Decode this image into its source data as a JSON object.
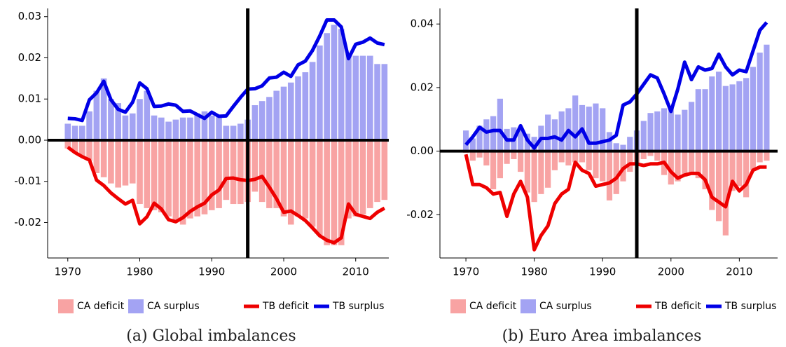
{
  "chart_data": [
    {
      "type": "combo",
      "caption": "(a) Global imbalances",
      "x": [
        1970,
        1971,
        1972,
        1973,
        1974,
        1975,
        1976,
        1977,
        1978,
        1979,
        1980,
        1981,
        1982,
        1983,
        1984,
        1985,
        1986,
        1987,
        1988,
        1989,
        1990,
        1991,
        1992,
        1993,
        1994,
        1995,
        1996,
        1997,
        1998,
        1999,
        2000,
        2001,
        2002,
        2003,
        2004,
        2005,
        2006,
        2007,
        2008,
        2009,
        2010,
        2011,
        2012,
        2013,
        2014
      ],
      "xlim": [
        1967.2,
        2014.6
      ],
      "xticks": [
        1970,
        1980,
        1990,
        2000,
        2010
      ],
      "ylim": [
        -0.0286,
        0.032
      ],
      "yticks": [
        -0.02,
        -0.01,
        {
          "value": 0,
          "label": "0.00"
        },
        0.01,
        0.02,
        0.03
      ],
      "vline": 1995,
      "series": [
        {
          "name": "CA deficit",
          "type": "bar",
          "color": "#f8a3a3",
          "values": [
            -0.002,
            -0.003,
            -0.004,
            -0.005,
            -0.008,
            -0.009,
            -0.0105,
            -0.0115,
            -0.011,
            -0.0105,
            -0.0155,
            -0.0165,
            -0.017,
            -0.0175,
            -0.0185,
            -0.0195,
            -0.0205,
            -0.019,
            -0.0185,
            -0.018,
            -0.017,
            -0.0165,
            -0.0145,
            -0.0155,
            -0.0155,
            -0.015,
            -0.0125,
            -0.015,
            -0.0165,
            -0.0165,
            -0.0185,
            -0.0205,
            -0.0185,
            -0.019,
            -0.021,
            -0.023,
            -0.0255,
            -0.0255,
            -0.0255,
            -0.019,
            -0.0185,
            -0.018,
            -0.0165,
            -0.015,
            -0.0145
          ]
        },
        {
          "name": "CA surplus",
          "type": "bar",
          "color": "#a3a3f3",
          "values": [
            0.004,
            0.0035,
            0.0035,
            0.007,
            0.012,
            0.015,
            0.01,
            0.009,
            0.006,
            0.0065,
            0.01,
            0.012,
            0.006,
            0.0055,
            0.0045,
            0.005,
            0.0055,
            0.0055,
            0.0065,
            0.007,
            0.006,
            0.006,
            0.0035,
            0.0035,
            0.004,
            0.005,
            0.0085,
            0.0095,
            0.0105,
            0.012,
            0.013,
            0.014,
            0.0155,
            0.0165,
            0.019,
            0.023,
            0.026,
            0.028,
            0.027,
            0.021,
            0.0205,
            0.0205,
            0.0205,
            0.0185,
            0.0185
          ]
        },
        {
          "name": "TB deficit",
          "type": "line",
          "color": "#ee0000",
          "values": [
            -0.0017,
            -0.003,
            -0.004,
            -0.0048,
            -0.0097,
            -0.011,
            -0.0128,
            -0.0142,
            -0.0155,
            -0.0146,
            -0.0203,
            -0.0186,
            -0.0153,
            -0.0167,
            -0.0193,
            -0.0198,
            -0.0188,
            -0.0173,
            -0.0162,
            -0.0153,
            -0.0133,
            -0.0121,
            -0.0093,
            -0.0092,
            -0.0096,
            -0.0098,
            -0.0095,
            -0.0088,
            -0.0114,
            -0.0142,
            -0.0175,
            -0.0172,
            -0.0183,
            -0.0195,
            -0.0213,
            -0.0232,
            -0.0243,
            -0.0249,
            -0.0237,
            -0.0155,
            -0.018,
            -0.0185,
            -0.019,
            -0.0175,
            -0.0165
          ]
        },
        {
          "name": "TB surplus",
          "type": "line",
          "color": "#0000e6",
          "values": [
            0.0053,
            0.0052,
            0.0048,
            0.0098,
            0.0115,
            0.0143,
            0.0098,
            0.0075,
            0.0068,
            0.0092,
            0.0139,
            0.0125,
            0.0082,
            0.0083,
            0.0088,
            0.0085,
            0.007,
            0.0071,
            0.0062,
            0.0053,
            0.0068,
            0.0058,
            0.0059,
            0.0082,
            0.0104,
            0.0124,
            0.0125,
            0.0132,
            0.0151,
            0.0153,
            0.0165,
            0.0155,
            0.0183,
            0.0192,
            0.0218,
            0.0253,
            0.0292,
            0.0292,
            0.0275,
            0.0198,
            0.0233,
            0.0238,
            0.0248,
            0.0236,
            0.0232
          ]
        }
      ]
    },
    {
      "type": "combo",
      "caption": "(b) Euro Area imbalances",
      "x": [
        1970,
        1971,
        1972,
        1973,
        1974,
        1975,
        1976,
        1977,
        1978,
        1979,
        1980,
        1981,
        1982,
        1983,
        1984,
        1985,
        1986,
        1987,
        1988,
        1989,
        1990,
        1991,
        1992,
        1993,
        1994,
        1995,
        1996,
        1997,
        1998,
        1999,
        2000,
        2001,
        2002,
        2003,
        2004,
        2005,
        2006,
        2007,
        2008,
        2009,
        2010,
        2011,
        2012,
        2013,
        2014
      ],
      "xlim": [
        1966.2,
        2015.6
      ],
      "xticks": [
        1970,
        1980,
        1990,
        2000,
        2010
      ],
      "ylim": [
        -0.0336,
        0.0449
      ],
      "yticks": [
        -0.02,
        {
          "value": 0,
          "label": "0.00"
        },
        0.02,
        0.04
      ],
      "vline": 1995,
      "series": [
        {
          "name": "CA deficit",
          "type": "bar",
          "color": "#f8a3a3",
          "values": [
            -0.0005,
            -0.003,
            -0.002,
            -0.0045,
            -0.012,
            -0.0085,
            -0.004,
            -0.0025,
            -0.0065,
            -0.013,
            -0.016,
            -0.0135,
            -0.0115,
            -0.006,
            -0.0035,
            -0.0045,
            -0.0035,
            -0.0035,
            -0.006,
            -0.0085,
            -0.0095,
            -0.0155,
            -0.0135,
            -0.0095,
            -0.0065,
            -0.004,
            -0.0025,
            -0.0015,
            -0.003,
            -0.0075,
            -0.0105,
            -0.0095,
            -0.008,
            -0.0075,
            -0.0085,
            -0.012,
            -0.0185,
            -0.022,
            -0.0265,
            -0.0125,
            -0.011,
            -0.0145,
            -0.006,
            -0.0035,
            -0.003
          ]
        },
        {
          "name": "CA surplus",
          "type": "bar",
          "color": "#a3a3f3",
          "values": [
            0.0065,
            0.004,
            0.008,
            0.01,
            0.011,
            0.0165,
            0.007,
            0.0075,
            0.0075,
            0.0055,
            0.0045,
            0.008,
            0.0115,
            0.01,
            0.0125,
            0.0135,
            0.0175,
            0.0145,
            0.014,
            0.015,
            0.0135,
            0.006,
            0.0025,
            0.002,
            0.0045,
            0.0065,
            0.0095,
            0.012,
            0.0125,
            0.0135,
            0.014,
            0.0115,
            0.013,
            0.0155,
            0.0195,
            0.0195,
            0.0235,
            0.025,
            0.0205,
            0.021,
            0.022,
            0.023,
            0.0265,
            0.031,
            0.0335
          ]
        },
        {
          "name": "TB deficit",
          "type": "line",
          "color": "#ee0000",
          "values": [
            -0.001,
            -0.0105,
            -0.0105,
            -0.0115,
            -0.0135,
            -0.013,
            -0.0205,
            -0.0135,
            -0.0095,
            -0.0145,
            -0.031,
            -0.0265,
            -0.0235,
            -0.0165,
            -0.0135,
            -0.012,
            -0.0035,
            -0.006,
            -0.007,
            -0.011,
            -0.0105,
            -0.01,
            -0.0085,
            -0.0055,
            -0.004,
            -0.004,
            -0.0045,
            -0.004,
            -0.004,
            -0.0035,
            -0.0065,
            -0.0085,
            -0.0075,
            -0.007,
            -0.007,
            -0.009,
            -0.0145,
            -0.016,
            -0.0175,
            -0.0095,
            -0.0125,
            -0.0105,
            -0.006,
            -0.005,
            -0.005
          ]
        },
        {
          "name": "TB surplus",
          "type": "line",
          "color": "#0000e6",
          "values": [
            0.002,
            0.0045,
            0.0075,
            0.006,
            0.0065,
            0.0065,
            0.0035,
            0.0035,
            0.008,
            0.0035,
            0.001,
            0.004,
            0.004,
            0.0045,
            0.0035,
            0.0065,
            0.0045,
            0.007,
            0.0025,
            0.0025,
            0.003,
            0.0035,
            0.005,
            0.0145,
            0.0155,
            0.018,
            0.021,
            0.024,
            0.023,
            0.018,
            0.0125,
            0.0195,
            0.028,
            0.0225,
            0.0265,
            0.0255,
            0.026,
            0.0305,
            0.0265,
            0.024,
            0.0255,
            0.025,
            0.0315,
            0.038,
            0.0405
          ]
        }
      ]
    }
  ]
}
